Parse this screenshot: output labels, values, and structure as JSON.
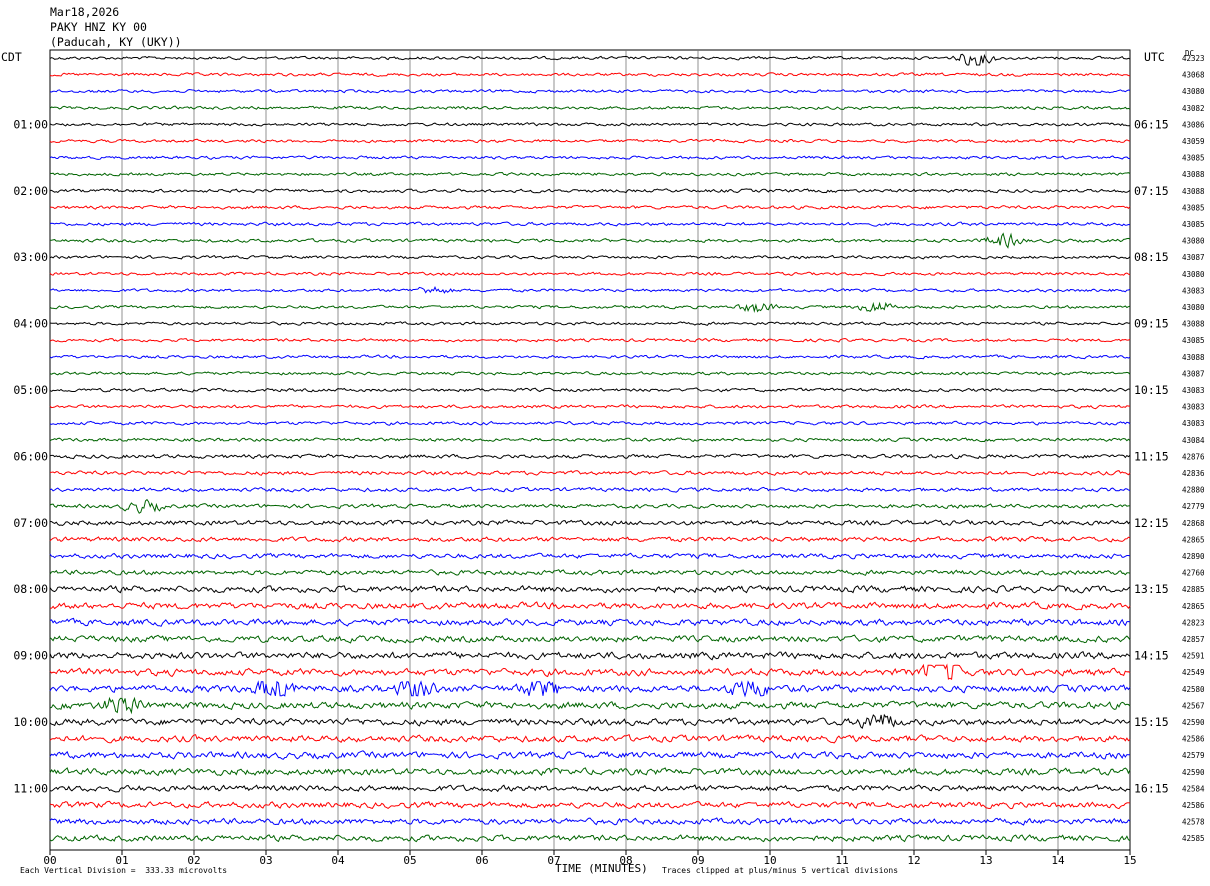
{
  "header": {
    "date": "Mar18,2026",
    "station": "PAKY HNZ KY 00",
    "location": "(Paducah, KY (UKY))"
  },
  "chart_data": {
    "type": "line",
    "title": "PAKY HNZ KY 00",
    "xlabel": "TIME (MINUTES)",
    "xlim": [
      0,
      15
    ],
    "x_ticks": [
      "00",
      "01",
      "02",
      "03",
      "04",
      "05",
      "06",
      "07",
      "08",
      "09",
      "10",
      "11",
      "12",
      "13",
      "14",
      "15"
    ],
    "left_axis_label": "CDT",
    "right_axis_label": "UTC",
    "dc_label": "DC",
    "left_time_labels": [
      "01:00",
      "02:00",
      "03:00",
      "04:00",
      "05:00",
      "06:00",
      "07:00",
      "08:00",
      "09:00",
      "10:00",
      "11:00"
    ],
    "right_time_labels": [
      "06:15",
      "07:15",
      "08:15",
      "09:15",
      "10:15",
      "11:15",
      "12:15",
      "13:15",
      "14:15",
      "15:15",
      "16:15"
    ],
    "trace_count": 48,
    "trace_interval_minutes": 15,
    "trace_colors": [
      "#000000",
      "#ff0000",
      "#0000ff",
      "#006400"
    ],
    "dc_offsets": [
      "42323",
      "43068",
      "43080",
      "43082",
      "43086",
      "43059",
      "43085",
      "43088",
      "43088",
      "43085",
      "43085",
      "43080",
      "43087",
      "43080",
      "43083",
      "43080",
      "43088",
      "43085",
      "43088",
      "43087",
      "43083",
      "43083",
      "43083",
      "43084",
      "42876",
      "42836",
      "42880",
      "42779",
      "42868",
      "42865",
      "42890",
      "42760",
      "42885",
      "42865",
      "42823",
      "42857",
      "42591",
      "42549",
      "42580",
      "42567",
      "42590",
      "42586",
      "42579",
      "42590",
      "42584",
      "42586",
      "42578",
      "42585"
    ],
    "events": [
      {
        "trace": 0,
        "minute": 12.85,
        "amp": 3.0
      },
      {
        "trace": 11,
        "minute": 13.25,
        "amp": 2.2
      },
      {
        "trace": 14,
        "minute": 5.3,
        "amp": 1.3
      },
      {
        "trace": 15,
        "minute": 9.8,
        "amp": 1.8
      },
      {
        "trace": 15,
        "minute": 11.5,
        "amp": 2.2
      },
      {
        "trace": 27,
        "minute": 1.3,
        "amp": 1.5
      },
      {
        "trace": 37,
        "minute": 12.4,
        "amp": 2.8
      },
      {
        "trace": 38,
        "minute": 3.1,
        "amp": 1.8
      },
      {
        "trace": 38,
        "minute": 5.1,
        "amp": 1.7
      },
      {
        "trace": 38,
        "minute": 6.8,
        "amp": 1.9
      },
      {
        "trace": 38,
        "minute": 9.7,
        "amp": 1.6
      },
      {
        "trace": 39,
        "minute": 1.0,
        "amp": 1.8
      },
      {
        "trace": 40,
        "minute": 11.5,
        "amp": 1.5
      }
    ],
    "noise_amplitude_by_hour": [
      1.0,
      1.0,
      1.1,
      1.0,
      1.0,
      1.1,
      1.3,
      1.6,
      2.1,
      2.3,
      2.2,
      2.0
    ]
  },
  "footer": {
    "scale": "Each Vertical Division =  333.33 microvolts",
    "clip": "Traces clipped at plus/minus 5 vertical divisions"
  }
}
